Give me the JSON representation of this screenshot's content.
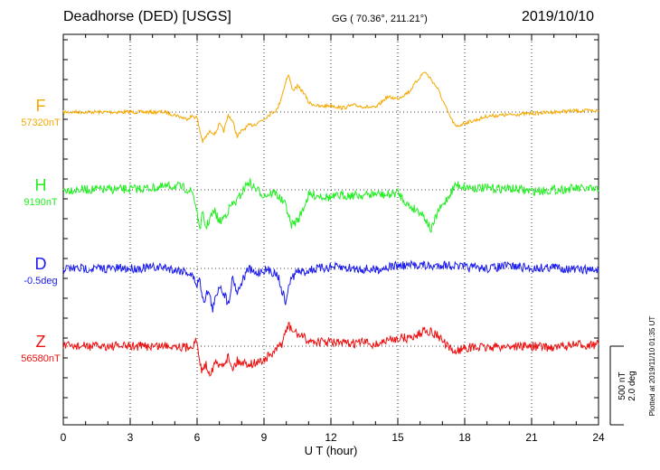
{
  "header": {
    "station": "Deadhorse (DED)  [USGS]",
    "coords": "GG ( 70.36°, 211.21°)",
    "date": "2019/10/10"
  },
  "side_note": "Plotted at 2019/11/10 01:35 UT",
  "colors": {
    "F": "#f5a800",
    "H": "#22ee22",
    "D": "#1a1aee",
    "Z": "#ee1111"
  },
  "chart_data": {
    "type": "line",
    "xlabel": "U T (hour)",
    "xlim": [
      0,
      24
    ],
    "x_ticks": [
      "0",
      "3",
      "6",
      "9",
      "12",
      "15",
      "18",
      "21",
      "24"
    ],
    "scale_bar": [
      "500 nT",
      "2.0 deg"
    ],
    "series": [
      {
        "name": "F",
        "baseline": "57320nT",
        "color": "#f5a800",
        "x": [
          0,
          4.5,
          5.0,
          5.5,
          5.8,
          6.0,
          6.1,
          6.25,
          6.4,
          6.6,
          6.8,
          7.0,
          7.2,
          7.4,
          7.6,
          7.8,
          8.0,
          8.3,
          8.6,
          9.0,
          9.3,
          9.6,
          9.8,
          10.0,
          10.1,
          10.3,
          10.5,
          10.8,
          11.0,
          11.5,
          12.0,
          12.5,
          13.0,
          13.5,
          14.0,
          14.5,
          15.0,
          15.5,
          16.0,
          16.2,
          16.5,
          16.8,
          17.0,
          17.3,
          17.6,
          18.0,
          18.5,
          19.0,
          20.0,
          21.0,
          22.0,
          23.0,
          24.0
        ],
        "y": [
          0,
          0,
          -10,
          -25,
          -15,
          -20,
          -60,
          -110,
          -90,
          -70,
          -80,
          -45,
          -70,
          -10,
          -35,
          -90,
          -70,
          -50,
          -45,
          -25,
          -5,
          10,
          60,
          120,
          135,
          80,
          95,
          70,
          35,
          20,
          25,
          15,
          25,
          20,
          15,
          55,
          50,
          75,
          130,
          150,
          120,
          85,
          45,
          -10,
          -55,
          -40,
          -30,
          -15,
          -10,
          -5,
          0,
          5,
          5
        ]
      },
      {
        "name": "H",
        "baseline": "9190nT",
        "color": "#22ee22",
        "x": [
          0,
          3.0,
          4.5,
          5.0,
          5.5,
          5.8,
          6.0,
          6.1,
          6.25,
          6.4,
          6.6,
          6.8,
          7.0,
          7.3,
          7.5,
          7.8,
          8.0,
          8.3,
          8.6,
          9.0,
          9.5,
          10.0,
          10.2,
          10.4,
          10.6,
          11.0,
          11.5,
          12.0,
          12.5,
          13.0,
          13.5,
          14.0,
          14.5,
          15.0,
          15.5,
          16.0,
          16.2,
          16.5,
          16.8,
          17.0,
          17.3,
          17.6,
          18.0,
          19.0,
          20.0,
          21.0,
          22.0,
          23.0,
          24.0
        ],
        "y": [
          0,
          2,
          10,
          15,
          5,
          -10,
          -80,
          -150,
          -90,
          -140,
          -100,
          -80,
          -120,
          -90,
          -60,
          -40,
          -10,
          30,
          5,
          -20,
          -10,
          -60,
          -130,
          -120,
          -100,
          -20,
          -20,
          -30,
          -20,
          -20,
          -20,
          -15,
          -20,
          -10,
          -60,
          -80,
          -100,
          -150,
          -80,
          -60,
          -20,
          20,
          10,
          5,
          5,
          -5,
          0,
          5,
          0
        ]
      },
      {
        "name": "D",
        "baseline": "-0.5deg",
        "color": "#1a1aee",
        "x": [
          0,
          3.0,
          4.5,
          5.0,
          5.5,
          5.8,
          6.0,
          6.1,
          6.3,
          6.5,
          6.7,
          7.0,
          7.2,
          7.4,
          7.6,
          7.8,
          8.0,
          8.3,
          8.6,
          9.0,
          9.3,
          9.6,
          9.8,
          10.0,
          10.1,
          10.3,
          10.5,
          10.8,
          11.0,
          12.0,
          13.0,
          14.0,
          14.5,
          15.0,
          15.5,
          16.0,
          16.5,
          17.0,
          17.5,
          18.0,
          19.0,
          20.0,
          21.0,
          22.0,
          23.0,
          24.0
        ],
        "y": [
          0,
          0,
          5,
          -5,
          -10,
          -30,
          -60,
          -40,
          -120,
          -80,
          -150,
          -60,
          -90,
          -130,
          -30,
          -90,
          -50,
          0,
          -20,
          -5,
          -10,
          -20,
          -80,
          -130,
          -60,
          -30,
          -10,
          -15,
          -5,
          5,
          0,
          -5,
          5,
          10,
          10,
          15,
          5,
          15,
          10,
          5,
          0,
          10,
          0,
          5,
          -5,
          -5
        ]
      },
      {
        "name": "Z",
        "baseline": "56580nT",
        "color": "#ee1111",
        "x": [
          0,
          4.0,
          5.0,
          5.5,
          5.8,
          6.0,
          6.1,
          6.2,
          6.4,
          6.6,
          6.8,
          7.0,
          7.2,
          7.4,
          7.6,
          7.8,
          8.0,
          8.5,
          9.0,
          9.5,
          9.8,
          10.0,
          10.1,
          10.3,
          10.5,
          10.7,
          11.0,
          11.5,
          12.0,
          12.5,
          13.0,
          13.5,
          14.0,
          14.5,
          15.0,
          15.5,
          16.0,
          16.2,
          16.5,
          16.8,
          17.0,
          17.3,
          17.6,
          18.0,
          19.0,
          20.0,
          21.0,
          22.0,
          23.0,
          24.0
        ],
        "y": [
          0,
          0,
          3,
          -5,
          5,
          20,
          -60,
          -85,
          -70,
          -100,
          -60,
          -75,
          -60,
          -40,
          -80,
          -55,
          -60,
          -65,
          -50,
          -20,
          10,
          60,
          75,
          55,
          45,
          35,
          20,
          15,
          15,
          10,
          10,
          15,
          5,
          20,
          30,
          30,
          45,
          65,
          50,
          40,
          20,
          -10,
          -20,
          -5,
          -5,
          0,
          0,
          -5,
          5,
          5
        ]
      }
    ]
  }
}
